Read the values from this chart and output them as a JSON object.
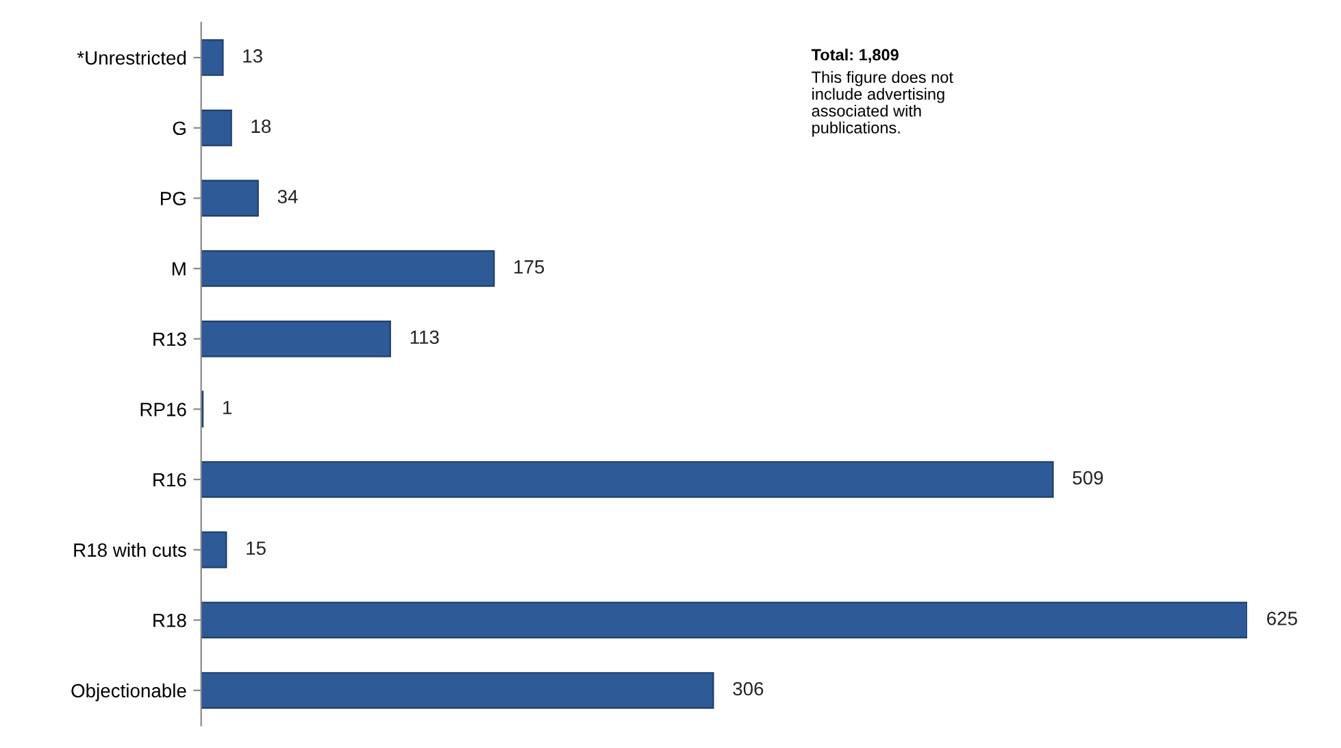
{
  "chart_data": {
    "type": "bar",
    "orientation": "horizontal",
    "categories": [
      "*Unrestricted",
      "G",
      "PG",
      "M",
      "R13",
      "RP16",
      "R16",
      "R18 with cuts",
      "R18",
      "Objectionable"
    ],
    "values": [
      13,
      18,
      34,
      175,
      113,
      1,
      509,
      15,
      625,
      306
    ],
    "color": "#2e5a97",
    "data_labels": true,
    "annotations": [
      "Total: 1,809",
      "This figure does not\ninclude advertising\nassociated with\npublications."
    ]
  }
}
